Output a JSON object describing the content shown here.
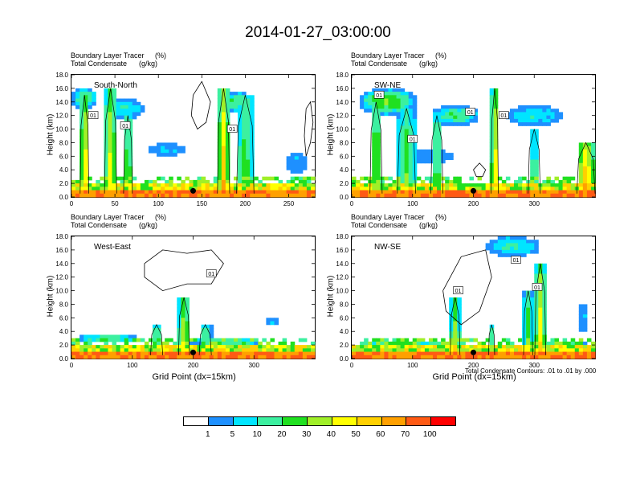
{
  "title": "2014-01-27_03:00:00",
  "colorbar": {
    "colors": [
      "#ffffff",
      "#1e90ff",
      "#00e5ff",
      "#3cf0a0",
      "#20e020",
      "#a0ef28",
      "#ffff00",
      "#ffd000",
      "#ffa000",
      "#ff5a14",
      "#ff0000"
    ],
    "labels": [
      "1",
      "5",
      "10",
      "20",
      "30",
      "40",
      "50",
      "60",
      "70",
      "100"
    ]
  },
  "contour_note": "Total Condensate Contours: .01 to .01 by .000",
  "chart_data": [
    {
      "type": "heatmap",
      "panel_title": "South-North",
      "label_line1": "Boundary Layer Tracer",
      "label_unit1": "(%)",
      "label_line2": "Total Condensate",
      "label_unit2": "(g/kg)",
      "ylabel": "Height (km)",
      "xlabel": "",
      "xlim": [
        0,
        280
      ],
      "ylim": [
        0,
        18
      ],
      "xticks": [
        0,
        50,
        100,
        150,
        200,
        250
      ],
      "yticks": [
        "0.0",
        "2.0",
        "4.0",
        "6.0",
        "8.0",
        "10.0",
        "12.0",
        "14.0",
        "16.0",
        "18.0"
      ],
      "contour_value": "01",
      "contour_labels": [
        {
          "x": 25,
          "y": 12.0
        },
        {
          "x": 62,
          "y": 10.5
        },
        {
          "x": 185,
          "y": 10.0
        }
      ],
      "marker_x": 140,
      "contours": [
        [
          [
            140,
            15
          ],
          [
            150,
            17
          ],
          [
            160,
            14
          ],
          [
            155,
            11
          ],
          [
            145,
            10
          ],
          [
            138,
            12
          ],
          [
            140,
            15
          ]
        ],
        [
          [
            270,
            6
          ],
          [
            275,
            8
          ],
          [
            278,
            11
          ],
          [
            275,
            14
          ],
          [
            270,
            13
          ],
          [
            268,
            9
          ],
          [
            270,
            6
          ]
        ]
      ],
      "plumes": [
        {
          "x": 15,
          "w": 10,
          "top": 15,
          "i": 8
        },
        {
          "x": 45,
          "w": 14,
          "top": 16,
          "i": 7
        },
        {
          "x": 65,
          "w": 10,
          "top": 12,
          "i": 6
        },
        {
          "x": 175,
          "w": 14,
          "top": 16,
          "i": 8
        },
        {
          "x": 200,
          "w": 20,
          "top": 15,
          "i": 5
        }
      ],
      "clouds": [
        {
          "x": 15,
          "y": 14.5,
          "w": 30,
          "h": 3.5,
          "i": 3
        },
        {
          "x": 60,
          "y": 13,
          "w": 50,
          "h": 3,
          "i": 2
        },
        {
          "x": 110,
          "y": 7,
          "w": 40,
          "h": 2,
          "i": 1
        },
        {
          "x": 190,
          "y": 14,
          "w": 45,
          "h": 3,
          "i": 3
        },
        {
          "x": 260,
          "y": 5,
          "w": 25,
          "h": 3,
          "i": 1
        }
      ]
    },
    {
      "type": "heatmap",
      "panel_title": "SW-NE",
      "label_line1": "Boundary Layer Tracer",
      "label_unit1": "(%)",
      "label_line2": "Total Condensate",
      "label_unit2": "(g/kg)",
      "ylabel": "Height (km)",
      "xlabel": "",
      "xlim": [
        0,
        400
      ],
      "ylim": [
        0,
        18
      ],
      "xticks": [
        0,
        100,
        200,
        300
      ],
      "yticks": [
        "0.0",
        "2.0",
        "4.0",
        "6.0",
        "8.0",
        "10.0",
        "12.0",
        "14.0",
        "16.0",
        "18.0"
      ],
      "contour_value": "01",
      "contour_labels": [
        {
          "x": 45,
          "y": 15.0
        },
        {
          "x": 100,
          "y": 8.5
        },
        {
          "x": 195,
          "y": 12.5
        },
        {
          "x": 250,
          "y": 12.0
        }
      ],
      "marker_x": 200,
      "contours": [
        [
          [
            200,
            4
          ],
          [
            210,
            5
          ],
          [
            220,
            4
          ],
          [
            215,
            3
          ],
          [
            205,
            3
          ],
          [
            200,
            4
          ]
        ]
      ],
      "plumes": [
        {
          "x": 40,
          "w": 20,
          "top": 14,
          "i": 6
        },
        {
          "x": 90,
          "w": 30,
          "top": 13,
          "i": 5
        },
        {
          "x": 140,
          "w": 20,
          "top": 12,
          "i": 5
        },
        {
          "x": 235,
          "w": 12,
          "top": 16,
          "i": 8
        },
        {
          "x": 300,
          "w": 20,
          "top": 10,
          "i": 4
        },
        {
          "x": 385,
          "w": 30,
          "top": 8,
          "i": 9
        }
      ],
      "clouds": [
        {
          "x": 60,
          "y": 14,
          "w": 100,
          "h": 4,
          "i": 4
        },
        {
          "x": 170,
          "y": 12,
          "w": 80,
          "h": 3,
          "i": 3
        },
        {
          "x": 300,
          "y": 12,
          "w": 90,
          "h": 3,
          "i": 2
        },
        {
          "x": 130,
          "y": 6,
          "w": 80,
          "h": 2,
          "i": 1
        }
      ]
    },
    {
      "type": "heatmap",
      "panel_title": "West-East",
      "label_line1": "Boundary Layer Tracer",
      "label_unit1": "(%)",
      "label_line2": "Total Condensate",
      "label_unit2": "(g/kg)",
      "ylabel": "Height (km)",
      "xlabel": "Grid Point (dx=15km)",
      "xlim": [
        0,
        400
      ],
      "ylim": [
        0,
        18
      ],
      "xticks": [
        0,
        100,
        200,
        300
      ],
      "yticks": [
        "0.0",
        "2.0",
        "4.0",
        "6.0",
        "8.0",
        "10.0",
        "12.0",
        "14.0",
        "16.0",
        "18.0"
      ],
      "contour_value": "01",
      "contour_labels": [
        {
          "x": 230,
          "y": 12.5
        }
      ],
      "marker_x": 200,
      "contours": [
        [
          [
            120,
            14
          ],
          [
            150,
            16
          ],
          [
            190,
            15.5
          ],
          [
            230,
            16
          ],
          [
            250,
            14
          ],
          [
            230,
            11
          ],
          [
            190,
            11
          ],
          [
            150,
            10
          ],
          [
            120,
            12
          ],
          [
            120,
            14
          ]
        ]
      ],
      "plumes": [
        {
          "x": 140,
          "w": 20,
          "top": 5,
          "i": 5
        },
        {
          "x": 185,
          "w": 18,
          "top": 9,
          "i": 7
        },
        {
          "x": 220,
          "w": 20,
          "top": 5,
          "i": 5
        }
      ],
      "clouds": [
        {
          "x": 60,
          "y": 3,
          "w": 100,
          "h": 1.5,
          "i": 3
        },
        {
          "x": 250,
          "y": 2.5,
          "w": 120,
          "h": 1.5,
          "i": 3
        },
        {
          "x": 330,
          "y": 5.5,
          "w": 15,
          "h": 1.5,
          "i": 1
        }
      ]
    },
    {
      "type": "heatmap",
      "panel_title": "NW-SE",
      "label_line1": "Boundary Layer Tracer",
      "label_unit1": "(%)",
      "label_line2": "Total Condensate",
      "label_unit2": "(g/kg)",
      "ylabel": "Height (km)",
      "xlabel": "Grid Point (dx=15km)",
      "xlim": [
        0,
        400
      ],
      "ylim": [
        0,
        18
      ],
      "xticks": [
        0,
        100,
        200,
        300
      ],
      "yticks": [
        "0.0",
        "2.0",
        "4.0",
        "6.0",
        "8.0",
        "10.0",
        "12.0",
        "14.0",
        "16.0",
        "18.0"
      ],
      "contour_value": "01",
      "contour_labels": [
        {
          "x": 175,
          "y": 10.0
        },
        {
          "x": 270,
          "y": 14.5
        },
        {
          "x": 305,
          "y": 10.5
        }
      ],
      "marker_x": 200,
      "contours": [
        [
          [
            150,
            10
          ],
          [
            180,
            15
          ],
          [
            220,
            16
          ],
          [
            230,
            12
          ],
          [
            210,
            7
          ],
          [
            180,
            5
          ],
          [
            155,
            7
          ],
          [
            150,
            10
          ]
        ]
      ],
      "plumes": [
        {
          "x": 170,
          "w": 16,
          "top": 9,
          "i": 6
        },
        {
          "x": 230,
          "w": 10,
          "top": 5,
          "i": 4
        },
        {
          "x": 310,
          "w": 18,
          "top": 14,
          "i": 7
        },
        {
          "x": 290,
          "w": 15,
          "top": 10,
          "i": 5
        }
      ],
      "clouds": [
        {
          "x": 265,
          "y": 16.5,
          "w": 90,
          "h": 3,
          "i": 2
        },
        {
          "x": 80,
          "y": 2,
          "w": 120,
          "h": 1.5,
          "i": 4
        },
        {
          "x": 350,
          "y": 2,
          "w": 80,
          "h": 1.5,
          "i": 4
        },
        {
          "x": 380,
          "y": 6,
          "w": 15,
          "h": 4,
          "i": 1
        }
      ]
    }
  ]
}
